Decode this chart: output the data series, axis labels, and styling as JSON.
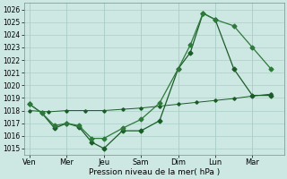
{
  "xlabel": "Pression niveau de la mer( hPa )",
  "background_color": "#cde8e2",
  "grid_color": "#aacfc8",
  "line_color1": "#1a5c28",
  "line_color2": "#2d7a3a",
  "line_color3": "#1a5c28",
  "ylim": [
    1014.5,
    1026.5
  ],
  "yticks": [
    1015,
    1016,
    1017,
    1018,
    1019,
    1020,
    1021,
    1022,
    1023,
    1024,
    1025,
    1026
  ],
  "day_labels": [
    "Ven",
    "Mer",
    "Jeu",
    "Sam",
    "Dim",
    "Lun",
    "Mar"
  ],
  "day_x": [
    0,
    1,
    2,
    3,
    4,
    5,
    6
  ],
  "xlim": [
    -0.15,
    6.85
  ],
  "line1_x": [
    0,
    0.33,
    0.67,
    1.0,
    1.33,
    1.67,
    2.0,
    2.5,
    3.0,
    3.5,
    4.0,
    4.33,
    4.67,
    5.0,
    5.5,
    6.0,
    6.5
  ],
  "line1_y": [
    1018.5,
    1017.8,
    1016.6,
    1017.0,
    1016.7,
    1015.5,
    1015.0,
    1016.4,
    1016.4,
    1017.2,
    1021.3,
    1022.6,
    1025.7,
    1025.2,
    1021.3,
    1019.2,
    1019.2
  ],
  "line2_x": [
    0,
    0.33,
    0.67,
    1.0,
    1.33,
    1.67,
    2.0,
    2.5,
    3.0,
    3.5,
    4.0,
    4.33,
    4.67,
    5.0,
    5.5,
    6.0,
    6.5
  ],
  "line2_y": [
    1018.5,
    1017.8,
    1016.8,
    1017.0,
    1016.8,
    1015.8,
    1015.8,
    1016.6,
    1017.3,
    1018.6,
    1021.3,
    1023.2,
    1025.7,
    1025.2,
    1024.7,
    1023.0,
    1021.3
  ],
  "line3_x": [
    0,
    0.5,
    1.0,
    1.5,
    2.0,
    2.5,
    3.0,
    3.5,
    4.0,
    4.5,
    5.0,
    5.5,
    6.0,
    6.5
  ],
  "line3_y": [
    1018.0,
    1017.9,
    1018.0,
    1018.0,
    1018.0,
    1018.1,
    1018.2,
    1018.35,
    1018.5,
    1018.65,
    1018.8,
    1018.95,
    1019.15,
    1019.3
  ]
}
